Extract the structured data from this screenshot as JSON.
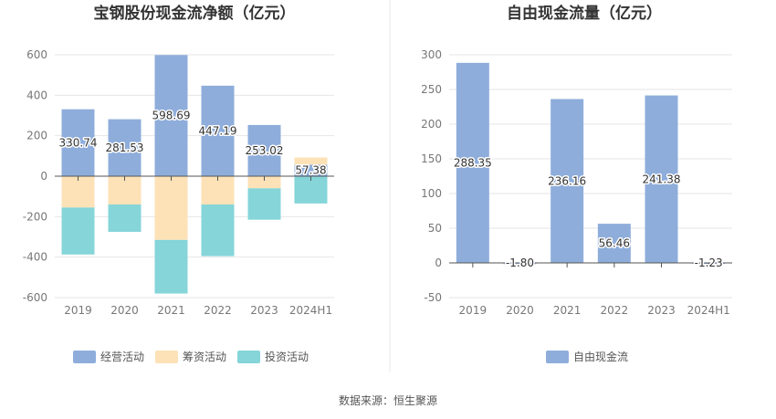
{
  "source_label": "数据来源：恒生聚源",
  "chart_data": [
    {
      "type": "bar",
      "stacked": true,
      "title": "宝钢股份现金流净额（亿元）",
      "categories": [
        "2019",
        "2020",
        "2021",
        "2022",
        "2023",
        "2024H1"
      ],
      "ylim": [
        -600,
        600
      ],
      "yticks": [
        600,
        400,
        200,
        0,
        -200,
        -400,
        -600
      ],
      "series": [
        {
          "name": "经营活动",
          "color": "#8eaddb",
          "values": [
            330.74,
            281.53,
            598.69,
            447.19,
            253.02,
            57.38
          ],
          "labels": [
            "330.74",
            "281.53",
            "598.69",
            "447.19",
            "253.02",
            "57.38"
          ]
        },
        {
          "name": "筹资活动",
          "color": "#fde2b7",
          "values": [
            -155,
            -140,
            -315,
            -140,
            -60,
            35
          ]
        },
        {
          "name": "投资活动",
          "color": "#85d5d9",
          "values": [
            -232,
            -135,
            -265,
            -255,
            -155,
            -135
          ]
        }
      ],
      "legend": "bottom"
    },
    {
      "type": "bar",
      "title": "自由现金流量（亿元）",
      "categories": [
        "2019",
        "2020",
        "2021",
        "2022",
        "2023",
        "2024H1"
      ],
      "ylim": [
        -50,
        300
      ],
      "yticks": [
        300,
        250,
        200,
        150,
        100,
        50,
        0,
        -50
      ],
      "series": [
        {
          "name": "自由现金流",
          "color": "#8eaddb",
          "values": [
            288.35,
            -1.8,
            236.16,
            56.46,
            241.38,
            -1.23
          ],
          "labels": [
            "288.35",
            "-1.80",
            "236.16",
            "56.46",
            "241.38",
            "-1.23"
          ]
        }
      ],
      "legend": "bottom"
    }
  ]
}
